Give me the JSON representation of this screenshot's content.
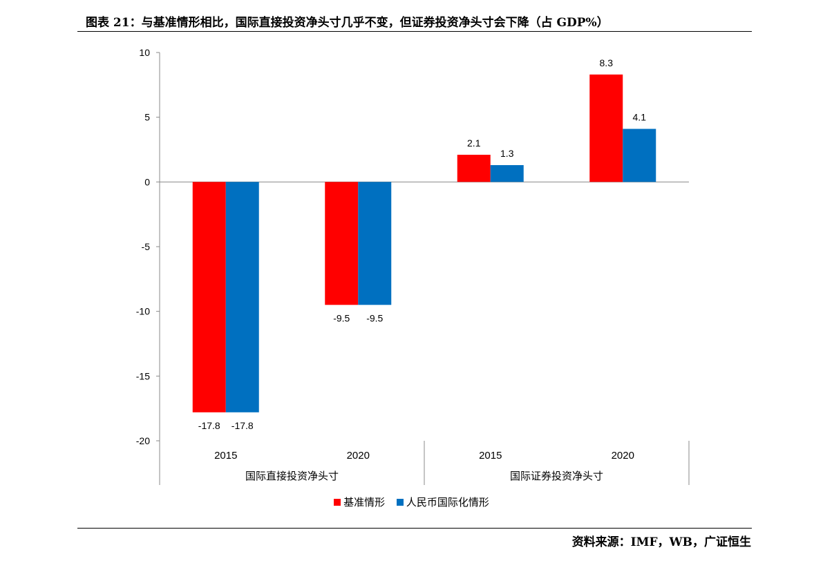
{
  "header": {
    "title": "图表 21：与基准情形相比，国际直接投资净头寸几乎不变，但证券投资净头寸会下降（占 GDP%）"
  },
  "footer": {
    "source": "资料来源：IMF，WB，广证恒生"
  },
  "chart_data": {
    "type": "bar",
    "title": "图表 21：与基准情形相比，国际直接投资净头寸几乎不变，但证券投资净头寸会下降（占 GDP%）",
    "xlabel": "",
    "ylabel": "",
    "ylim": [
      -20,
      10
    ],
    "yticks": [
      10,
      5,
      0,
      -5,
      -10,
      -15,
      -20
    ],
    "groups": [
      {
        "label": "国际直接投资净头寸",
        "categories": [
          "2015",
          "2020"
        ]
      },
      {
        "label": "国际证券投资净头寸",
        "categories": [
          "2015",
          "2020"
        ]
      }
    ],
    "categories": [
      "2015",
      "2020",
      "2015",
      "2020"
    ],
    "series": [
      {
        "name": "基准情形",
        "color": "#ff0000",
        "values": [
          -17.8,
          -9.5,
          2.1,
          8.3
        ]
      },
      {
        "name": "人民币国际化情形",
        "color": "#0070c0",
        "values": [
          -17.8,
          -9.5,
          1.3,
          4.1
        ]
      }
    ],
    "legend_position": "bottom",
    "grid": false
  }
}
